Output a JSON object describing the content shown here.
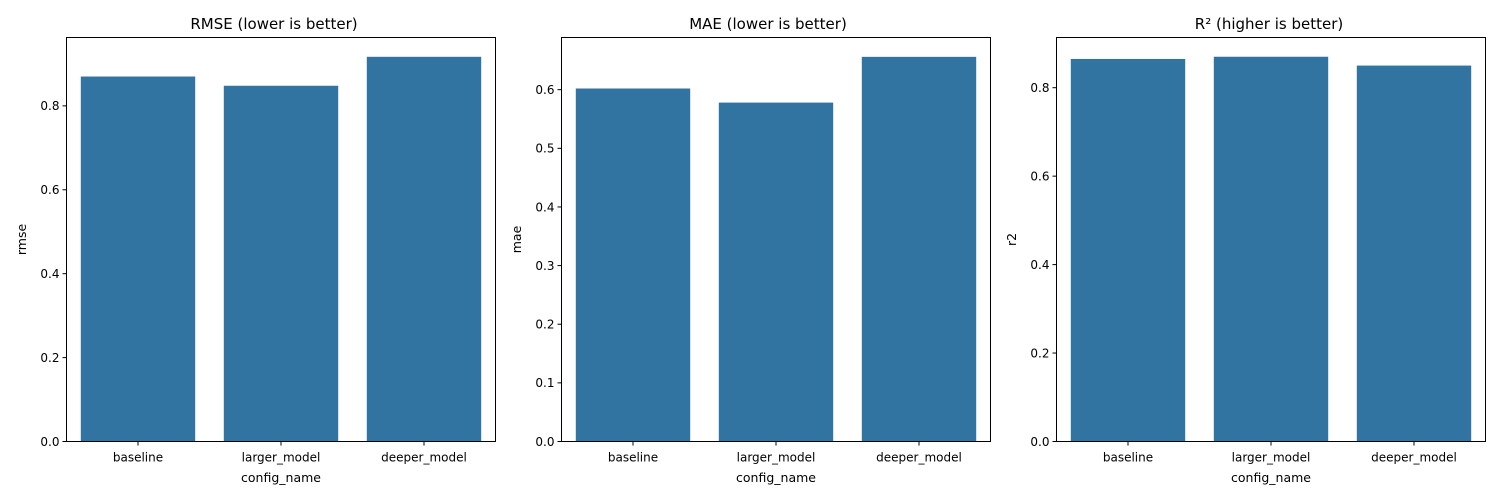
{
  "colors": {
    "bar": "#3274a1",
    "axis": "#000000",
    "background": "#ffffff"
  },
  "chart_data": [
    {
      "type": "bar",
      "title": "RMSE (lower is better)",
      "xlabel": "config_name",
      "ylabel": "rmse",
      "categories": [
        "baseline",
        "larger_model",
        "deeper_model"
      ],
      "values": [
        0.87,
        0.848,
        0.917
      ],
      "ylim": [
        0,
        0.963
      ],
      "yticks": [
        0.0,
        0.2,
        0.4,
        0.6,
        0.8
      ],
      "ytick_labels": [
        "0.0",
        "0.2",
        "0.4",
        "0.6",
        "0.8"
      ],
      "grid": false,
      "legend": "none"
    },
    {
      "type": "bar",
      "title": "MAE (lower is better)",
      "xlabel": "config_name",
      "ylabel": "mae",
      "categories": [
        "baseline",
        "larger_model",
        "deeper_model"
      ],
      "values": [
        0.602,
        0.578,
        0.656
      ],
      "ylim": [
        0,
        0.689
      ],
      "yticks": [
        0.0,
        0.1,
        0.2,
        0.3,
        0.4,
        0.5,
        0.6
      ],
      "ytick_labels": [
        "0.0",
        "0.1",
        "0.2",
        "0.3",
        "0.4",
        "0.5",
        "0.6"
      ],
      "grid": false,
      "legend": "none"
    },
    {
      "type": "bar",
      "title": "R² (higher is better)",
      "xlabel": "config_name",
      "ylabel": "r2",
      "categories": [
        "baseline",
        "larger_model",
        "deeper_model"
      ],
      "values": [
        0.865,
        0.87,
        0.85
      ],
      "ylim": [
        0,
        0.9135
      ],
      "yticks": [
        0.0,
        0.2,
        0.4,
        0.6,
        0.8
      ],
      "ytick_labels": [
        "0.0",
        "0.2",
        "0.4",
        "0.6",
        "0.8"
      ],
      "grid": false,
      "legend": "none"
    }
  ]
}
